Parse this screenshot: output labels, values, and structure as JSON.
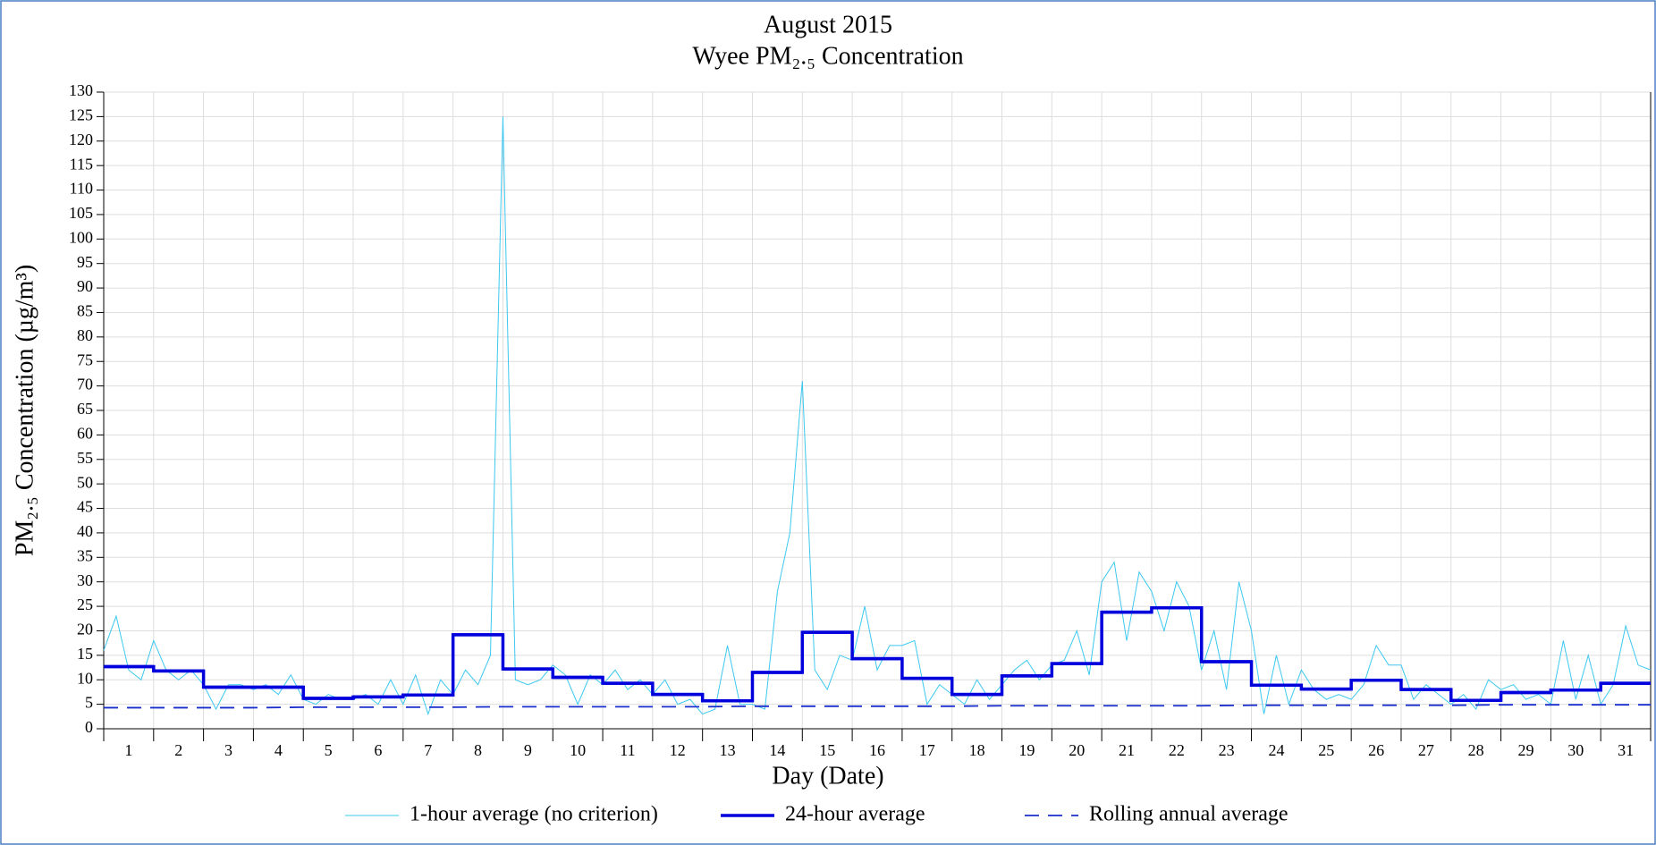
{
  "chart_data": {
    "type": "line",
    "title": "August 2015",
    "subtitle": "Wyee PM₂.₅ Concentration",
    "x_label": "Day (Date)",
    "y_label": "PM₂.₅ Concentration (µg/m³)",
    "xlim": [
      1,
      32
    ],
    "xticks": [
      1,
      2,
      3,
      4,
      5,
      6,
      7,
      8,
      9,
      10,
      11,
      12,
      13,
      14,
      15,
      16,
      17,
      18,
      19,
      20,
      21,
      22,
      23,
      24,
      25,
      26,
      27,
      28,
      29,
      30,
      31,
      32
    ],
    "day_labels": [
      1,
      2,
      3,
      4,
      5,
      6,
      7,
      8,
      9,
      10,
      11,
      12,
      13,
      14,
      15,
      16,
      17,
      18,
      19,
      20,
      21,
      22,
      23,
      24,
      25,
      26,
      27,
      28,
      29,
      30,
      31
    ],
    "ylim": [
      0,
      130
    ],
    "yticks": [
      0,
      5,
      10,
      15,
      20,
      25,
      30,
      35,
      40,
      45,
      50,
      55,
      60,
      65,
      70,
      75,
      80,
      85,
      90,
      95,
      100,
      105,
      110,
      115,
      120,
      125,
      130
    ],
    "grid": true,
    "legend": "bottom",
    "series": [
      {
        "name": "1-hour average (no criterion)",
        "color": "#3cc8f0",
        "style": "thin",
        "x": [
          1,
          1.25,
          1.5,
          1.75,
          2,
          2.25,
          2.5,
          2.75,
          3,
          3.25,
          3.5,
          3.75,
          4,
          4.25,
          4.5,
          4.75,
          5,
          5.25,
          5.5,
          5.75,
          6,
          6.25,
          6.5,
          6.75,
          7,
          7.25,
          7.5,
          7.75,
          8,
          8.25,
          8.5,
          8.75,
          9,
          9.25,
          9.5,
          9.75,
          10,
          10.25,
          10.5,
          10.75,
          11,
          11.25,
          11.5,
          11.75,
          12,
          12.25,
          12.5,
          12.75,
          13,
          13.25,
          13.5,
          13.75,
          14,
          14.25,
          14.5,
          14.75,
          15,
          15.25,
          15.5,
          15.75,
          16,
          16.25,
          16.5,
          16.75,
          17,
          17.25,
          17.5,
          17.75,
          18,
          18.25,
          18.5,
          18.75,
          19,
          19.25,
          19.5,
          19.75,
          20,
          20.25,
          20.5,
          20.75,
          21,
          21.25,
          21.5,
          21.75,
          22,
          22.25,
          22.5,
          22.75,
          23,
          23.25,
          23.5,
          23.75,
          24,
          24.25,
          24.5,
          24.75,
          25,
          25.25,
          25.5,
          25.75,
          26,
          26.25,
          26.5,
          26.75,
          27,
          27.25,
          27.5,
          27.75,
          28,
          28.25,
          28.5,
          28.75,
          29,
          29.25,
          29.5,
          29.75,
          30,
          30.25,
          30.5,
          30.75,
          31,
          31.25,
          31.5,
          31.75,
          32
        ],
        "values": [
          16,
          23,
          12,
          10,
          18,
          12,
          10,
          12,
          9,
          4,
          9,
          9,
          8,
          9,
          7,
          11,
          6,
          5,
          7,
          6,
          6,
          7,
          5,
          10,
          5,
          11,
          3,
          10,
          7,
          12,
          9,
          15,
          125,
          10,
          9,
          10,
          13,
          11,
          5,
          11,
          9,
          12,
          8,
          10,
          7,
          10,
          5,
          6,
          3,
          4,
          17,
          5,
          5,
          4,
          28,
          40,
          71,
          12,
          8,
          15,
          14,
          25,
          12,
          17,
          17,
          18,
          5,
          9,
          7,
          5,
          10,
          6,
          9,
          12,
          14,
          10,
          13,
          14,
          20,
          11,
          30,
          34,
          18,
          32,
          28,
          20,
          30,
          25,
          12,
          20,
          8,
          30,
          20,
          3,
          15,
          5,
          12,
          8,
          6,
          7,
          6,
          9,
          17,
          13,
          13,
          6,
          9,
          7,
          5,
          7,
          4,
          10,
          8,
          9,
          6,
          7,
          5,
          18,
          6,
          15,
          5,
          9,
          21,
          13,
          12
        ]
      },
      {
        "name": "24-hour average",
        "color": "#0000dd",
        "style": "step",
        "x": [
          1,
          2,
          3,
          4,
          5,
          6,
          7,
          8,
          9,
          10,
          11,
          12,
          13,
          14,
          15,
          16,
          17,
          18,
          19,
          20,
          21,
          22,
          23,
          24,
          25,
          26,
          27,
          28,
          29,
          30,
          31
        ],
        "values": [
          12.7,
          11.8,
          8.5,
          8.5,
          6.2,
          6.5,
          6.9,
          19.2,
          12.2,
          10.5,
          9.3,
          7.0,
          5.7,
          11.5,
          19.7,
          14.3,
          10.3,
          7.0,
          10.8,
          13.3,
          23.8,
          24.7,
          13.7,
          8.9,
          8.1,
          9.9,
          8.0,
          5.8,
          7.4,
          7.9,
          9.3
        ]
      },
      {
        "name": "Rolling annual average",
        "color": "#1a2ecc",
        "style": "dashed",
        "x": [
          1,
          2,
          3,
          4,
          5,
          6,
          7,
          8,
          9,
          10,
          11,
          12,
          13,
          14,
          15,
          16,
          17,
          18,
          19,
          20,
          21,
          22,
          23,
          24,
          25,
          26,
          27,
          28,
          29,
          30,
          31,
          32
        ],
        "values": [
          4.3,
          4.3,
          4.3,
          4.3,
          4.4,
          4.4,
          4.4,
          4.4,
          4.5,
          4.5,
          4.5,
          4.5,
          4.5,
          4.6,
          4.6,
          4.6,
          4.6,
          4.6,
          4.7,
          4.7,
          4.7,
          4.7,
          4.7,
          4.8,
          4.8,
          4.8,
          4.8,
          4.8,
          4.9,
          4.9,
          4.9,
          4.9
        ]
      }
    ]
  }
}
